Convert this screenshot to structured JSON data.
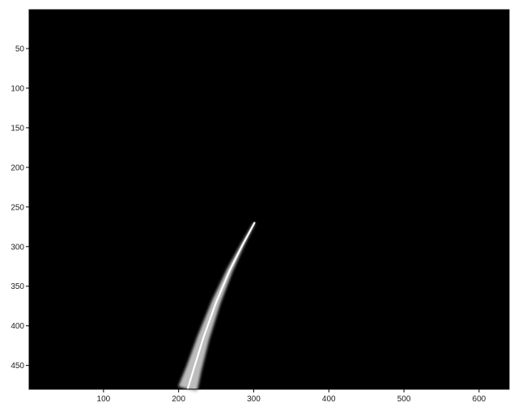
{
  "chart_data": {
    "type": "heatmap",
    "title": "",
    "xlabel": "",
    "ylabel": "",
    "xlim": [
      1,
      640
    ],
    "ylim": [
      480,
      1
    ],
    "y_axis_direction": "reversed",
    "x_ticks": [
      100,
      200,
      300,
      400,
      500,
      600
    ],
    "y_ticks": [
      50,
      100,
      150,
      200,
      250,
      300,
      350,
      400,
      450
    ],
    "x_tick_labels": [
      "100",
      "200",
      "300",
      "400",
      "500",
      "600"
    ],
    "y_tick_labels": [
      "50",
      "100",
      "150",
      "200",
      "250",
      "300",
      "350",
      "400",
      "450"
    ],
    "grid": false,
    "background_color": "#000000",
    "stroke_color": "#ffffff",
    "stroke": {
      "description_points_in_image_units": [
        {
          "x": 301,
          "y": 270
        },
        {
          "x": 285,
          "y": 298
        },
        {
          "x": 268,
          "y": 330
        },
        {
          "x": 250,
          "y": 370
        },
        {
          "x": 233,
          "y": 415
        },
        {
          "x": 220,
          "y": 455
        },
        {
          "x": 212,
          "y": 480
        }
      ],
      "tip_width": 2,
      "base_width": 24
    }
  }
}
